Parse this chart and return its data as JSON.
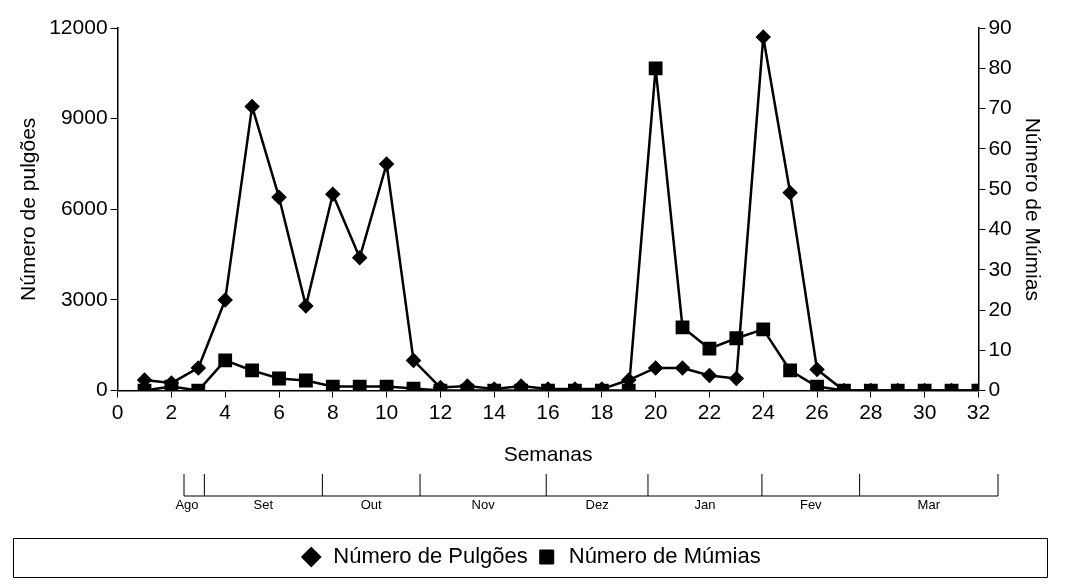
{
  "chart_data": {
    "type": "line",
    "xlabel": "Semanas",
    "ylabel": "Número de pulgões",
    "y2label": "Número de Múmias",
    "x": [
      1,
      2,
      3,
      4,
      5,
      6,
      7,
      8,
      9,
      10,
      11,
      12,
      13,
      14,
      15,
      16,
      17,
      18,
      19,
      20,
      21,
      22,
      23,
      24,
      25,
      26,
      27,
      28,
      29,
      30,
      31,
      32
    ],
    "series": [
      {
        "name": "Número de Pulgões",
        "color": "#000000",
        "marker": "diamond",
        "values": [
          350,
          250,
          750,
          3000,
          9400,
          6400,
          2800,
          6500,
          4400,
          7500,
          1000,
          100,
          150,
          50,
          150,
          50,
          50,
          50,
          350,
          750,
          750,
          500,
          400,
          11700,
          6550,
          700,
          0,
          0,
          0,
          0,
          0,
          0
        ]
      },
      {
        "name": "Número de Múmias",
        "color": "#000000",
        "marker": "square",
        "axis": "y2",
        "values": [
          0,
          1,
          0,
          7.5,
          5,
          3,
          2.5,
          1,
          1,
          1,
          0.5,
          0,
          0,
          0,
          0,
          0,
          0,
          0,
          0,
          80,
          15.7,
          10.4,
          13,
          15.2,
          5,
          1,
          0,
          0,
          0,
          0,
          0,
          0
        ]
      }
    ],
    "xlim": [
      0,
      32
    ],
    "xticks": [
      0,
      2,
      4,
      6,
      8,
      10,
      12,
      14,
      16,
      18,
      20,
      22,
      24,
      26,
      28,
      30,
      32
    ],
    "ylim": [
      0,
      12000
    ],
    "yticks": [
      0,
      3000,
      6000,
      9000,
      12000
    ],
    "y2lim": [
      0,
      90
    ],
    "y2ticks": [
      0,
      10,
      20,
      30,
      40,
      50,
      60,
      70,
      80,
      90
    ],
    "annotations": [
      "Ago",
      "Set",
      "Out",
      "Nov",
      "Dez",
      "Jan",
      "Fev",
      "Mar"
    ],
    "grid": false,
    "legend": "bottom",
    "line_style": "solid"
  }
}
